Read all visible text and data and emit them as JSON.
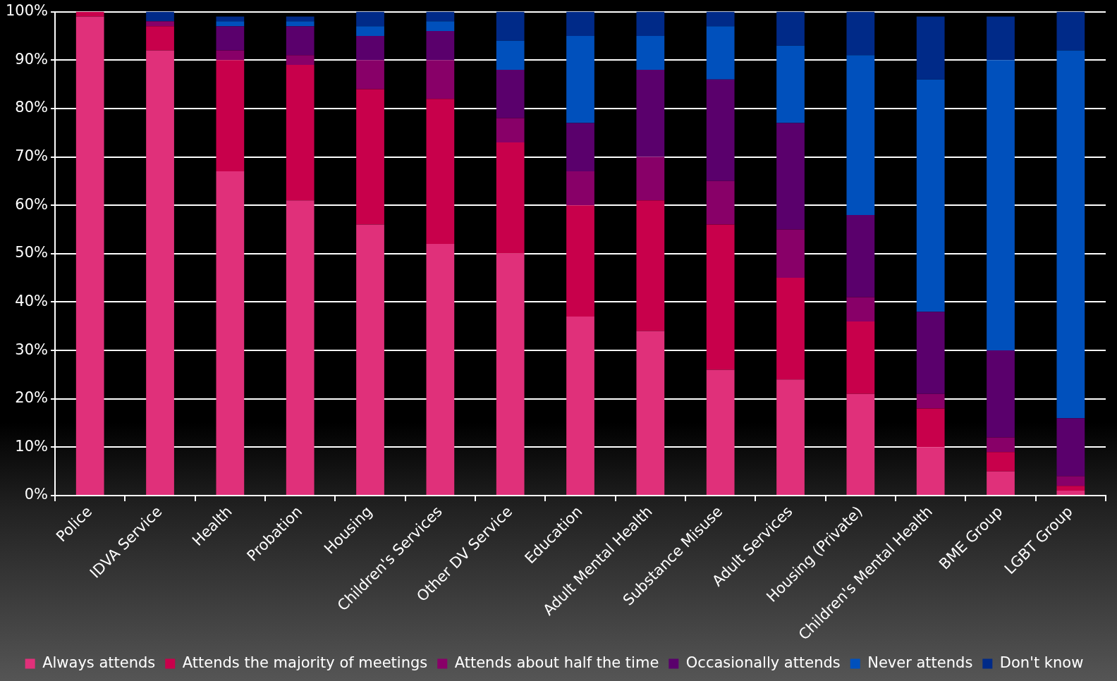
{
  "chart_data": {
    "type": "bar",
    "stacked": true,
    "grid": "y",
    "legend": "bottom",
    "categories": [
      "Police",
      "IDVA Service",
      "Health",
      "Probation",
      "Housing",
      "Children's Services",
      "Other DV Service",
      "Education",
      "Adult Mental Health",
      "Substance Misuse",
      "Adult Services",
      "Housing (Private)",
      "Children's Mental Health",
      "BME Group",
      "LGBT Group"
    ],
    "ylim": [
      0,
      100
    ],
    "yticks": [
      {
        "value": 0,
        "label": "0%"
      },
      {
        "value": 10,
        "label": "10%"
      },
      {
        "value": 20,
        "label": "20%"
      },
      {
        "value": 30,
        "label": "30%"
      },
      {
        "value": 40,
        "label": "40%"
      },
      {
        "value": 50,
        "label": "50%"
      },
      {
        "value": 60,
        "label": "60%"
      },
      {
        "value": 70,
        "label": "70%"
      },
      {
        "value": 80,
        "label": "80%"
      },
      {
        "value": 90,
        "label": "90%"
      },
      {
        "value": 100,
        "label": "100%"
      }
    ],
    "series": [
      {
        "name": "Always attends",
        "color": "#e0307a",
        "values": [
          99,
          92,
          67,
          61,
          56,
          52,
          50,
          37,
          34,
          26,
          24,
          21,
          10,
          5,
          1
        ]
      },
      {
        "name": "Attends the majority of meetings",
        "color": "#c8004b",
        "values": [
          1,
          5,
          23,
          28,
          28,
          30,
          23,
          23,
          27,
          30,
          21,
          15,
          8,
          4,
          1
        ]
      },
      {
        "name": "Attends about half the time",
        "color": "#880068",
        "values": [
          0,
          1,
          2,
          2,
          6,
          8,
          5,
          7,
          9,
          9,
          10,
          5,
          3,
          3,
          2
        ]
      },
      {
        "name": "Occasionally attends",
        "color": "#5a006c",
        "values": [
          0,
          0,
          5,
          6,
          5,
          6,
          10,
          10,
          18,
          21,
          22,
          17,
          17,
          18,
          12
        ]
      },
      {
        "name": "Never attends",
        "color": "#0050bc",
        "values": [
          0,
          0,
          1,
          1,
          2,
          2,
          6,
          18,
          7,
          11,
          16,
          33,
          48,
          60,
          76
        ]
      },
      {
        "name": "Don't know",
        "color": "#002a88",
        "values": [
          0,
          2,
          1,
          1,
          3,
          2,
          6,
          5,
          5,
          3,
          7,
          9,
          13,
          9,
          8
        ]
      }
    ]
  }
}
